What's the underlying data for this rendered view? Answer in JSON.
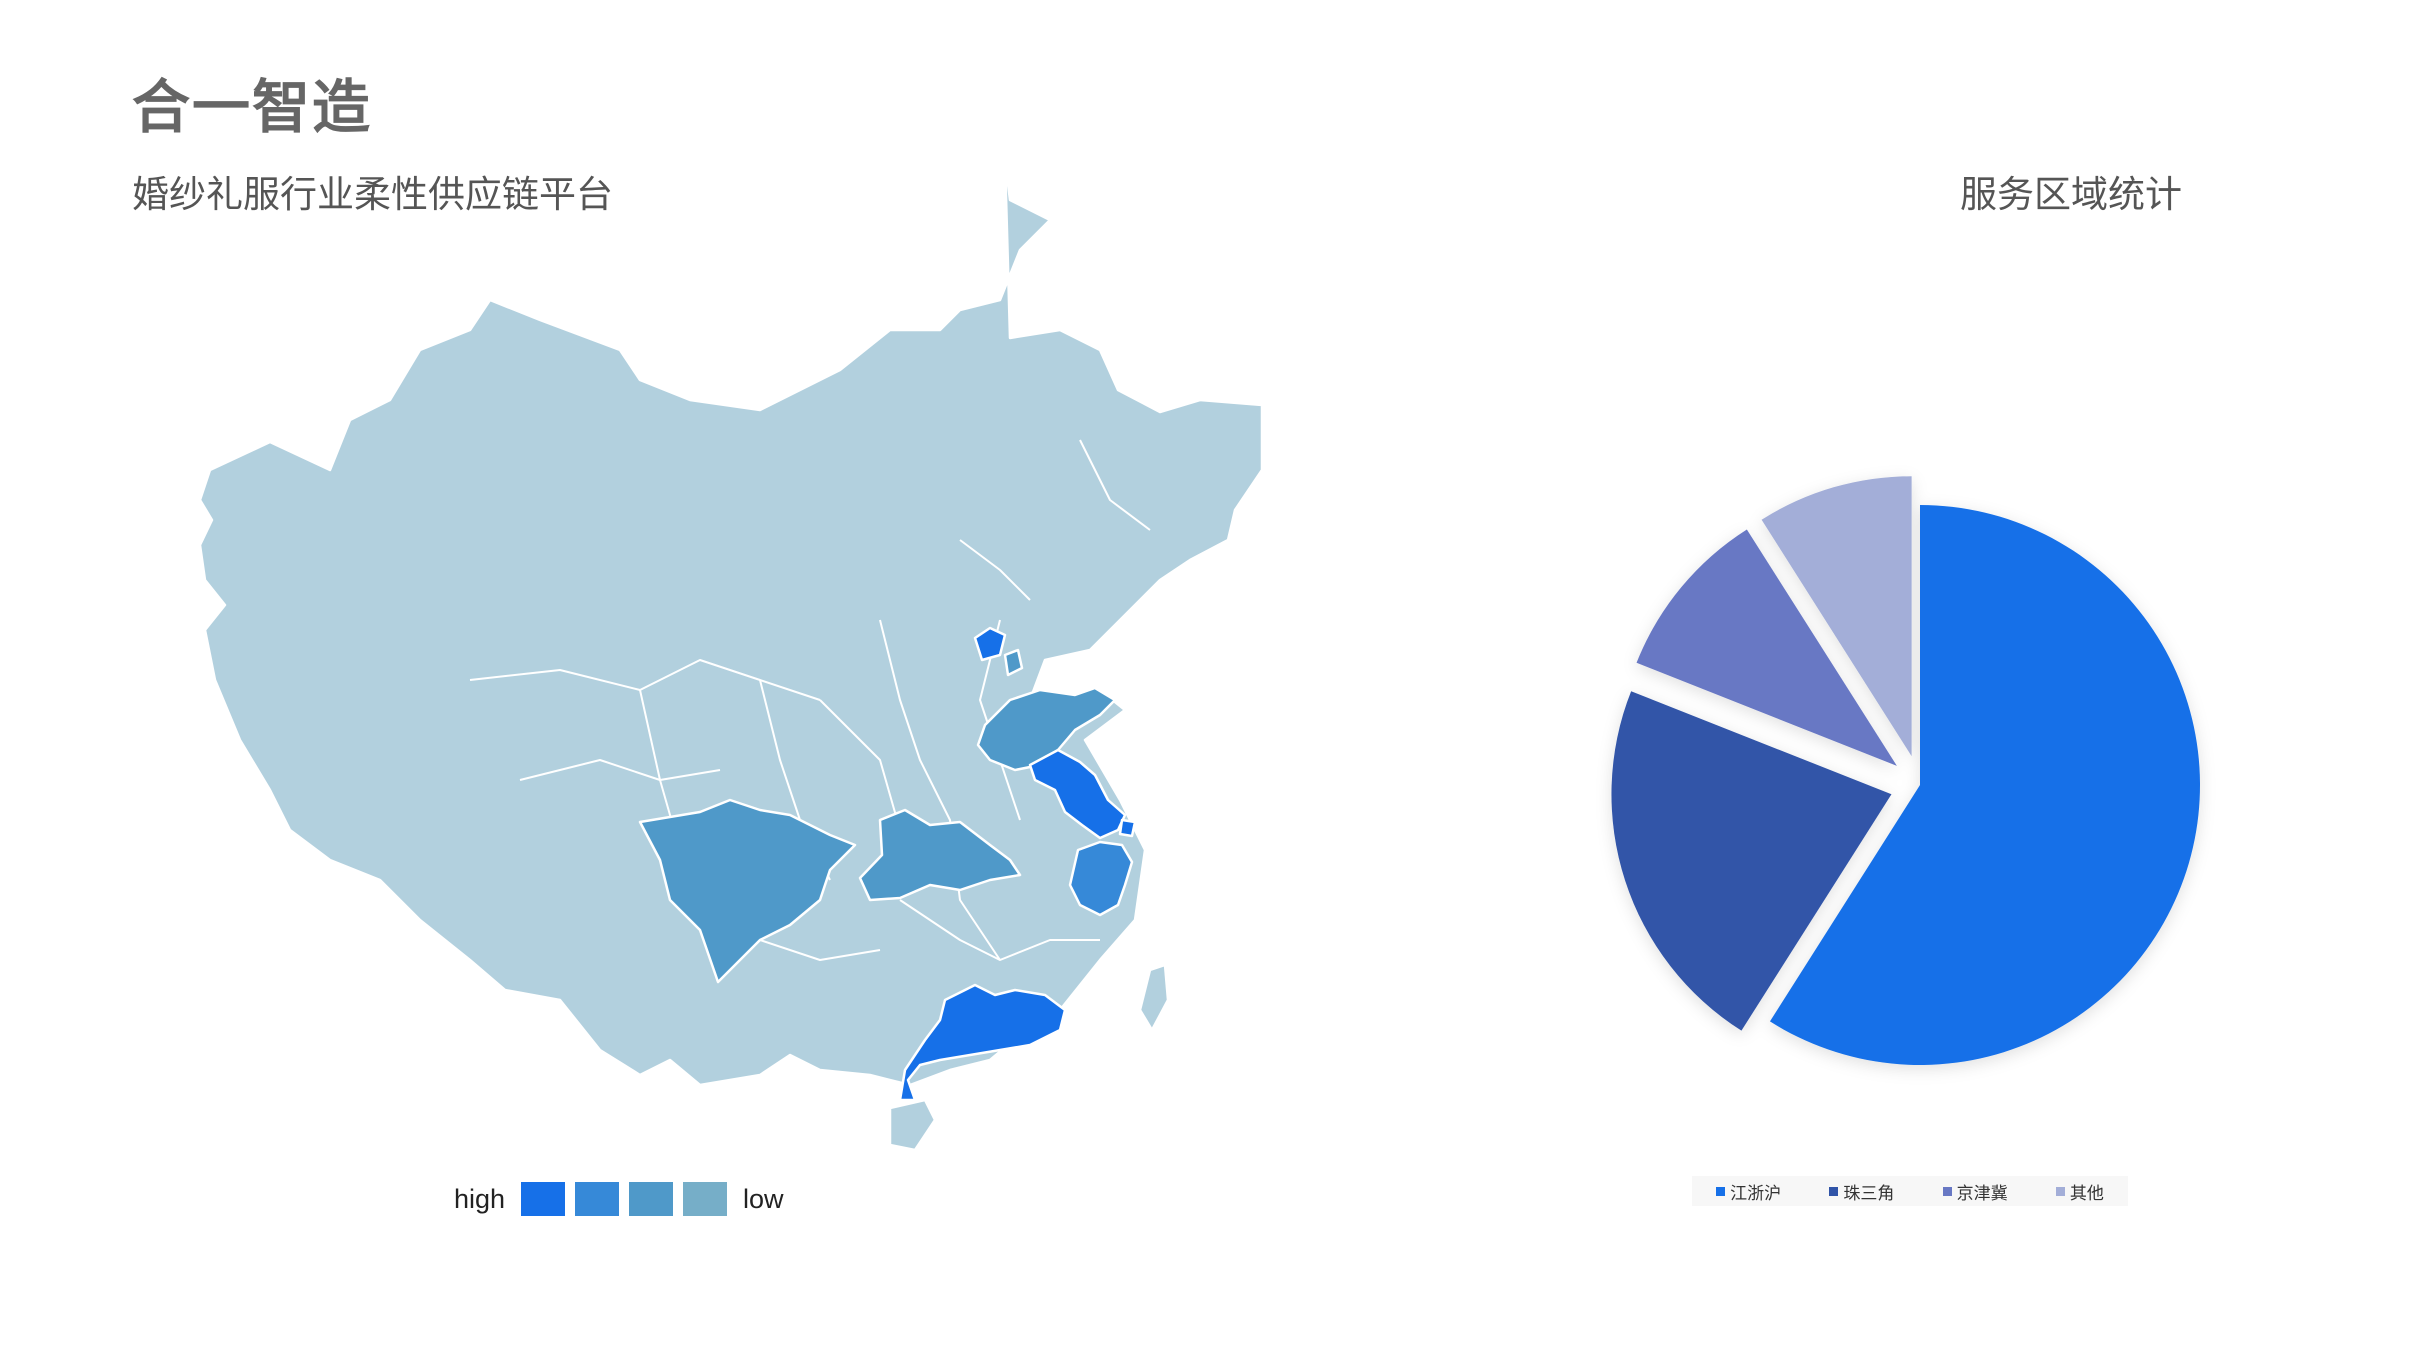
{
  "header": {
    "title": "合一智造",
    "subtitle": "婚纱礼服行业柔性供应链平台"
  },
  "map": {
    "base_color": "#b2d0de",
    "scale_legend": {
      "high_label": "high",
      "low_label": "low",
      "colors": [
        "#1670e8",
        "#3689d8",
        "#4f99c9",
        "#76aec8"
      ]
    },
    "highlighted_regions": [
      {
        "name": "北京",
        "level": 1
      },
      {
        "name": "天津",
        "level": 3
      },
      {
        "name": "山东",
        "level": 3
      },
      {
        "name": "江苏",
        "level": 1
      },
      {
        "name": "上海",
        "level": 1
      },
      {
        "name": "浙江",
        "level": 2
      },
      {
        "name": "湖北",
        "level": 3
      },
      {
        "name": "四川",
        "level": 3
      },
      {
        "name": "广东",
        "level": 1
      }
    ]
  },
  "pie": {
    "title": "服务区域统计"
  },
  "chart_data": {
    "type": "pie",
    "title": "服务区域统计",
    "categories": [
      "江浙沪",
      "珠三角",
      "京津冀",
      "其他"
    ],
    "values": [
      59,
      22,
      10,
      9
    ],
    "colors": [
      "#1670e8",
      "#3054a8",
      "#6878c4",
      "#a3aed8"
    ],
    "exploded": [
      false,
      true,
      true,
      true
    ],
    "legend_position": "bottom"
  }
}
